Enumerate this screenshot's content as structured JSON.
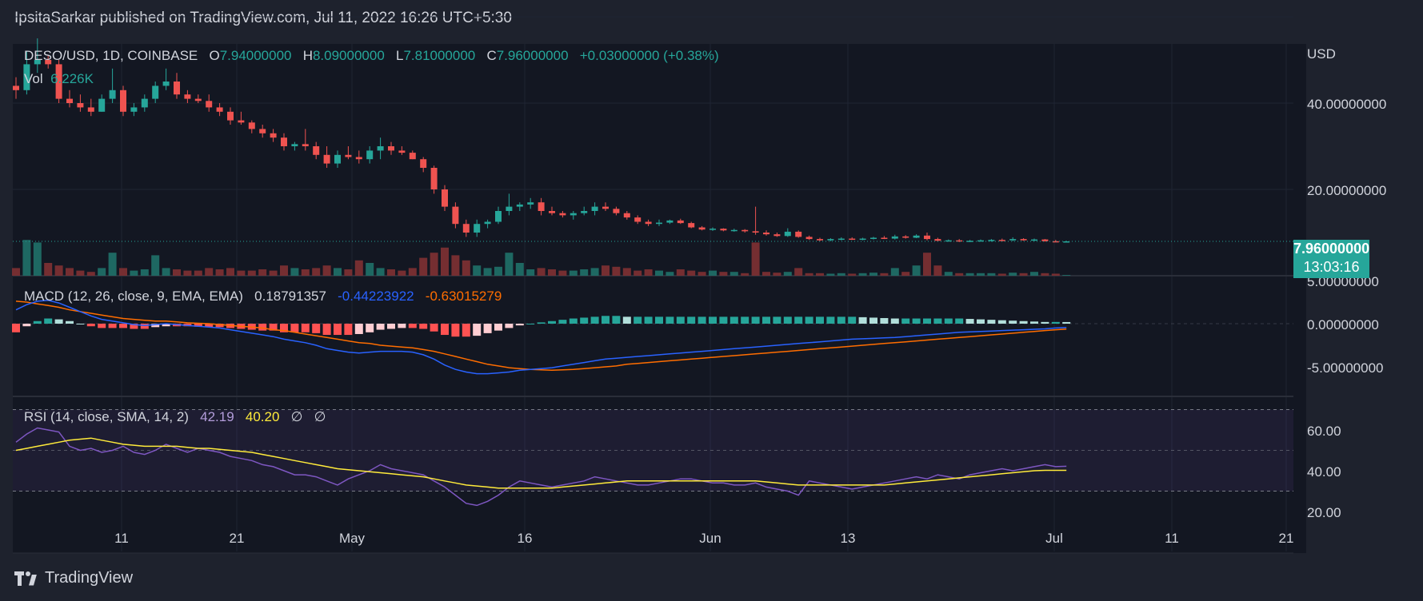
{
  "header": {
    "publish_line": "IpsitaSarkar published on TradingView.com, Jul 11, 2022 16:26 UTC+5:30"
  },
  "footer": {
    "brand": "TradingView"
  },
  "legend": {
    "symbol": "DESO/USD, 1D, COINBASE",
    "o_label": "O",
    "o_value": "7.94000000",
    "h_label": "H",
    "h_value": "8.09000000",
    "l_label": "L",
    "l_value": "7.81000000",
    "c_label": "C",
    "c_value": "7.96000000",
    "change": "+0.03000000 (+0.38%)",
    "vol_label": "Vol",
    "vol_value": "6.226K",
    "macd_label": "MACD (12, 26, close, 9, EMA, EMA)",
    "macd_hist": "0.18791357",
    "macd_line": "-0.44223922",
    "macd_signal": "-0.63015279",
    "rsi_label": "RSI (14, close, SMA, 14, 2)",
    "rsi_value": "42.19",
    "rsi_sma": "40.20",
    "rsi_extra1": "∅",
    "rsi_extra2": "∅"
  },
  "price_tag": {
    "price": "7.96000000",
    "countdown": "13:03:16"
  },
  "colors": {
    "up": "#26a69a",
    "down": "#ef5350",
    "macd": "#2962ff",
    "signal": "#ff6d00",
    "rsi": "#7e57c2",
    "rsi_sma": "#ffeb3b",
    "background": "#131722"
  },
  "chart_data": [
    {
      "type": "candlestick",
      "currency": "USD",
      "y_ticks": [
        "40.00000000",
        "20.00000000"
      ],
      "x_ticks": [
        "11",
        "21",
        "May",
        "16",
        "Jun",
        "13",
        "Jul",
        "11",
        "21"
      ],
      "grid": true,
      "ohlc": [
        [
          44,
          46,
          41,
          43
        ],
        [
          43,
          52,
          42,
          49
        ],
        [
          49,
          55,
          47,
          50
        ],
        [
          50,
          51,
          48,
          49
        ],
        [
          49,
          50,
          40,
          41
        ],
        [
          41,
          43,
          39,
          40
        ],
        [
          40,
          42,
          38,
          39
        ],
        [
          39,
          41,
          37,
          38
        ],
        [
          38,
          42,
          38,
          41
        ],
        [
          41,
          48,
          40,
          43
        ],
        [
          43,
          44,
          37,
          38
        ],
        [
          38,
          40,
          37,
          39
        ],
        [
          39,
          42,
          38,
          41
        ],
        [
          41,
          45,
          40,
          44
        ],
        [
          44,
          48,
          43,
          45
        ],
        [
          45,
          47,
          41,
          42
        ],
        [
          42,
          43,
          40,
          41
        ],
        [
          41,
          42,
          40,
          40.5
        ],
        [
          40.5,
          42,
          38,
          39
        ],
        [
          39,
          40,
          37,
          38
        ],
        [
          38,
          39,
          35,
          36
        ],
        [
          36,
          38,
          35,
          35.5
        ],
        [
          35.5,
          36,
          33,
          34
        ],
        [
          34,
          35,
          32,
          33
        ],
        [
          33,
          34,
          31,
          32
        ],
        [
          32,
          33,
          29,
          30
        ],
        [
          30,
          31,
          29,
          30.5
        ],
        [
          30.5,
          34,
          29,
          30
        ],
        [
          30,
          31,
          27,
          28
        ],
        [
          28,
          30,
          25,
          26
        ],
        [
          26,
          29,
          25,
          28
        ],
        [
          28,
          30,
          27,
          27.5
        ],
        [
          27.5,
          29,
          26,
          27
        ],
        [
          27,
          30,
          26,
          29
        ],
        [
          29,
          32,
          27,
          30
        ],
        [
          30,
          31,
          28,
          29
        ],
        [
          29,
          30,
          28,
          28.5
        ],
        [
          28.5,
          29,
          27,
          27
        ],
        [
          27,
          27.5,
          24,
          25
        ],
        [
          25,
          25.5,
          19,
          20
        ],
        [
          20,
          21,
          15,
          16
        ],
        [
          16,
          17,
          11,
          12
        ],
        [
          12,
          13,
          9,
          10
        ],
        [
          10,
          13,
          9,
          12
        ],
        [
          12,
          13,
          11,
          12.5
        ],
        [
          12.5,
          16,
          12,
          15
        ],
        [
          15,
          19,
          14,
          16
        ],
        [
          16,
          17,
          15,
          16.5
        ],
        [
          16.5,
          18,
          15.5,
          17
        ],
        [
          17,
          18,
          14,
          15
        ],
        [
          15,
          16,
          14,
          14.5
        ],
        [
          14.5,
          15,
          13.5,
          14
        ],
        [
          14,
          15,
          13,
          14.5
        ],
        [
          14.5,
          16,
          14,
          15
        ],
        [
          15,
          17,
          14,
          16
        ],
        [
          16,
          17,
          15,
          15.5
        ],
        [
          15.5,
          16,
          14,
          14.5
        ],
        [
          14.5,
          15,
          13,
          13.5
        ],
        [
          13.5,
          14,
          12,
          12.5
        ],
        [
          12.5,
          13,
          11.5,
          12
        ],
        [
          12,
          13,
          11.5,
          12.3
        ],
        [
          12.3,
          13,
          12,
          12.8
        ],
        [
          12.8,
          13.2,
          12,
          12.2
        ],
        [
          12.2,
          12.5,
          11,
          11.2
        ],
        [
          11.2,
          11.5,
          10.5,
          10.7
        ],
        [
          10.7,
          11.2,
          10.4,
          10.9
        ],
        [
          10.9,
          11,
          10.3,
          10.5
        ],
        [
          10.5,
          10.9,
          10.2,
          10.6
        ],
        [
          10.6,
          10.8,
          10,
          10.3
        ],
        [
          10.3,
          16,
          9.5,
          10
        ],
        [
          10,
          10.5,
          9.3,
          9.6
        ],
        [
          9.6,
          10,
          9,
          9.2
        ],
        [
          9.2,
          11,
          9,
          10.2
        ],
        [
          10.2,
          10.5,
          8.8,
          9
        ],
        [
          9,
          9.3,
          8.3,
          8.5
        ],
        [
          8.5,
          8.8,
          8,
          8.2
        ],
        [
          8.2,
          8.7,
          8,
          8.5
        ],
        [
          8.5,
          8.9,
          8.2,
          8.6
        ],
        [
          8.6,
          8.9,
          8.3,
          8.4
        ],
        [
          8.4,
          8.8,
          8.2,
          8.6
        ],
        [
          8.6,
          9,
          8.4,
          8.8
        ],
        [
          8.8,
          9.2,
          8.5,
          8.6
        ],
        [
          8.6,
          9.5,
          8.4,
          9.1
        ],
        [
          9.1,
          9.4,
          8.6,
          8.8
        ],
        [
          8.8,
          9.6,
          8.7,
          9.3
        ],
        [
          9.3,
          10,
          8.2,
          8.5
        ],
        [
          8.5,
          8.8,
          7.9,
          8.1
        ],
        [
          8.1,
          8.4,
          7.9,
          8.2
        ],
        [
          8.2,
          8.5,
          7.8,
          8
        ],
        [
          8,
          8.3,
          7.8,
          8.1
        ],
        [
          8.1,
          8.4,
          7.9,
          8.2
        ],
        [
          8.2,
          8.5,
          7.9,
          8.3
        ],
        [
          8.3,
          8.6,
          8,
          8.2
        ],
        [
          8.2,
          8.9,
          8,
          8.5
        ],
        [
          8.5,
          8.7,
          8.1,
          8.2
        ],
        [
          8.2,
          8.6,
          8,
          8.4
        ],
        [
          8.4,
          8.5,
          7.9,
          8
        ],
        [
          8,
          8.3,
          7.8,
          7.9
        ],
        [
          7.94,
          8.09,
          7.81,
          7.96
        ]
      ],
      "volume": [
        3,
        14,
        13,
        5,
        4,
        3,
        2,
        1.5,
        3,
        9,
        3,
        2,
        2.5,
        8,
        3,
        2.5,
        2,
        2,
        3,
        2.5,
        3,
        2,
        2,
        2.5,
        2,
        4,
        3,
        2.5,
        3,
        4,
        3,
        2.5,
        6,
        5,
        3,
        2.5,
        2,
        3,
        7,
        9,
        11,
        8,
        6,
        4,
        3,
        3.5,
        9,
        5,
        2.5,
        3,
        2.5,
        2,
        2,
        2.5,
        3,
        4,
        3.5,
        3,
        2,
        2.5,
        2,
        1.5,
        2.5,
        2,
        1.5,
        2,
        1.5,
        1.5,
        1,
        13,
        1.5,
        1.2,
        1.5,
        3,
        1,
        1,
        0.8,
        1,
        0.8,
        1,
        1.2,
        1,
        3,
        1.5,
        4,
        9,
        4,
        1.5,
        1,
        1,
        1,
        1,
        0.8,
        1.2,
        1,
        1.5,
        1,
        0.8,
        0.3
      ]
    },
    {
      "type": "macd",
      "y_ticks": [
        "5.00000000",
        "0.00000000",
        "-5.00000000"
      ],
      "macd": [
        1.6,
        2.2,
        2.6,
        2.7,
        2.4,
        1.9,
        1.4,
        0.9,
        0.5,
        0.3,
        0.1,
        -0.1,
        -0.2,
        -0.1,
        0,
        -0.1,
        -0.2,
        -0.3,
        -0.4,
        -0.5,
        -0.7,
        -0.9,
        -1.1,
        -1.3,
        -1.5,
        -1.8,
        -2,
        -2.2,
        -2.5,
        -2.9,
        -3.1,
        -3.3,
        -3.4,
        -3.3,
        -3.2,
        -3.2,
        -3.2,
        -3.3,
        -3.6,
        -4.1,
        -4.8,
        -5.3,
        -5.6,
        -5.8,
        -5.8,
        -5.7,
        -5.6,
        -5.4,
        -5.3,
        -5.2,
        -5.1,
        -4.9,
        -4.7,
        -4.5,
        -4.3,
        -4.1,
        -4,
        -3.9,
        -3.8,
        -3.7,
        -3.6,
        -3.5,
        -3.4,
        -3.3,
        -3.2,
        -3.1,
        -3,
        -2.9,
        -2.8,
        -2.7,
        -2.6,
        -2.5,
        -2.4,
        -2.3,
        -2.2,
        -2.1,
        -2,
        -1.9,
        -1.8,
        -1.75,
        -1.7,
        -1.65,
        -1.6,
        -1.5,
        -1.4,
        -1.3,
        -1.2,
        -1.1,
        -1,
        -0.95,
        -0.9,
        -0.85,
        -0.8,
        -0.75,
        -0.7,
        -0.65,
        -0.6,
        -0.5,
        -0.44
      ],
      "signal": [
        2.6,
        2.5,
        2.3,
        2.1,
        1.9,
        1.6,
        1.4,
        1.2,
        1,
        0.8,
        0.6,
        0.5,
        0.4,
        0.3,
        0.3,
        0.2,
        0.1,
        0.05,
        0,
        -0.1,
        -0.2,
        -0.3,
        -0.4,
        -0.5,
        -0.7,
        -0.8,
        -1,
        -1.2,
        -1.4,
        -1.6,
        -1.8,
        -2,
        -2.2,
        -2.3,
        -2.5,
        -2.6,
        -2.7,
        -2.8,
        -3,
        -3.2,
        -3.5,
        -3.8,
        -4.1,
        -4.4,
        -4.7,
        -4.9,
        -5.1,
        -5.2,
        -5.3,
        -5.35,
        -5.4,
        -5.35,
        -5.3,
        -5.2,
        -5.1,
        -5,
        -4.9,
        -4.7,
        -4.6,
        -4.5,
        -4.4,
        -4.3,
        -4.2,
        -4.1,
        -4,
        -3.9,
        -3.8,
        -3.7,
        -3.6,
        -3.5,
        -3.4,
        -3.3,
        -3.2,
        -3.1,
        -3,
        -2.9,
        -2.8,
        -2.7,
        -2.6,
        -2.5,
        -2.4,
        -2.3,
        -2.2,
        -2.1,
        -2,
        -1.9,
        -1.8,
        -1.7,
        -1.6,
        -1.5,
        -1.4,
        -1.3,
        -1.2,
        -1.1,
        -1,
        -0.9,
        -0.8,
        -0.7,
        -0.63
      ],
      "histogram": [
        -1,
        -0.3,
        0.3,
        0.6,
        0.5,
        0.3,
        0,
        -0.3,
        -0.5,
        -0.5,
        -0.5,
        -0.6,
        -0.6,
        -0.4,
        -0.3,
        -0.3,
        -0.3,
        -0.35,
        -0.4,
        -0.4,
        -0.5,
        -0.6,
        -0.7,
        -0.8,
        -0.8,
        -1,
        -1,
        -1,
        -1.1,
        -1.3,
        -1.3,
        -1.3,
        -1.2,
        -1,
        -0.7,
        -0.6,
        -0.5,
        -0.5,
        -0.6,
        -0.9,
        -1.3,
        -1.5,
        -1.5,
        -1.4,
        -1.1,
        -0.8,
        -0.5,
        -0.2,
        0,
        0.15,
        0.3,
        0.45,
        0.6,
        0.7,
        0.8,
        0.9,
        0.9,
        0.8,
        0.8,
        0.8,
        0.8,
        0.8,
        0.8,
        0.8,
        0.8,
        0.8,
        0.8,
        0.8,
        0.8,
        0.8,
        0.8,
        0.8,
        0.8,
        0.8,
        0.8,
        0.8,
        0.8,
        0.8,
        0.8,
        0.75,
        0.7,
        0.65,
        0.6,
        0.6,
        0.6,
        0.6,
        0.6,
        0.6,
        0.6,
        0.55,
        0.5,
        0.45,
        0.4,
        0.35,
        0.3,
        0.25,
        0.2,
        0.2,
        0.19
      ]
    },
    {
      "type": "rsi",
      "y_ticks": [
        "60.00",
        "40.00",
        "20.00"
      ],
      "band": [
        30,
        70
      ],
      "midline": 50,
      "rsi": [
        54,
        58,
        61,
        60,
        59,
        52,
        50,
        51,
        49,
        50,
        52,
        49,
        48,
        50,
        53,
        51,
        49,
        51,
        50,
        49,
        47,
        46,
        45,
        43,
        42,
        40,
        38,
        38,
        37,
        35,
        33,
        36,
        38,
        40,
        43,
        41,
        40,
        39,
        38,
        35,
        32,
        28,
        24,
        23,
        25,
        28,
        32,
        35,
        34,
        33,
        32,
        33,
        34,
        35,
        37,
        36,
        35,
        34,
        33,
        33,
        34,
        35,
        36,
        36,
        35,
        34,
        34,
        33,
        33,
        34,
        32,
        31,
        30,
        28,
        35,
        34,
        33,
        32,
        31,
        32,
        33,
        34,
        35,
        36,
        37,
        36,
        38,
        37,
        36,
        38,
        39,
        40,
        41,
        40,
        41,
        42,
        43,
        42,
        42.19
      ],
      "sma": [
        50,
        51,
        52,
        53,
        54,
        55,
        55.5,
        56,
        55,
        54,
        53,
        52.5,
        52,
        52,
        52,
        52,
        51.5,
        51,
        51,
        50.5,
        50,
        49.5,
        49,
        48,
        47,
        46,
        45,
        44,
        43,
        42,
        41,
        40.5,
        40,
        39.5,
        39,
        38.5,
        38,
        37.5,
        37,
        36,
        35,
        34,
        33,
        32.5,
        32,
        31.5,
        31.5,
        31.5,
        31.5,
        31.5,
        31.5,
        32,
        32.5,
        33,
        33.5,
        34,
        34.5,
        35,
        35,
        35,
        35,
        35,
        35,
        35,
        35,
        35,
        35,
        35,
        35,
        35,
        34.5,
        34,
        33.5,
        33,
        33,
        33,
        33,
        33,
        33,
        33,
        33,
        33,
        33.5,
        34,
        34.5,
        35,
        35.5,
        36,
        36.5,
        37,
        37.5,
        38,
        38.5,
        39,
        39.5,
        40,
        40.2,
        40.2,
        40.2
      ]
    }
  ]
}
